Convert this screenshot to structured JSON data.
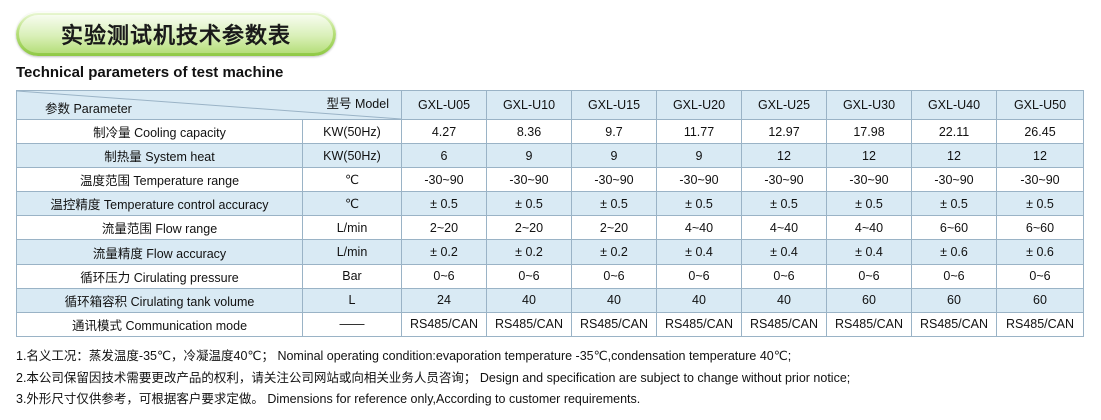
{
  "title": "实验测试机技术参数表",
  "subtitle": "Technical parameters of test machine",
  "table": {
    "corner_model_label": "型号 Model",
    "corner_param_label": "参数 Parameter",
    "models": [
      "GXL-U05",
      "GXL-U10",
      "GXL-U15",
      "GXL-U20",
      "GXL-U25",
      "GXL-U30",
      "GXL-U40",
      "GXL-U50"
    ],
    "rows": [
      {
        "param": "制冷量 Cooling capacity",
        "unit": "KW(50Hz)",
        "values": [
          "4.27",
          "8.36",
          "9.7",
          "11.77",
          "12.97",
          "17.98",
          "22.11",
          "26.45"
        ]
      },
      {
        "param": "制热量 System heat",
        "unit": "KW(50Hz)",
        "values": [
          "6",
          "9",
          "9",
          "9",
          "12",
          "12",
          "12",
          "12"
        ]
      },
      {
        "param": "温度范围 Temperature range",
        "unit": "℃",
        "values": [
          "-30~90",
          "-30~90",
          "-30~90",
          "-30~90",
          "-30~90",
          "-30~90",
          "-30~90",
          "-30~90"
        ]
      },
      {
        "param": "温控精度 Temperature control accuracy",
        "unit": "℃",
        "values": [
          "± 0.5",
          "± 0.5",
          "± 0.5",
          "± 0.5",
          "± 0.5",
          "± 0.5",
          "± 0.5",
          "± 0.5"
        ]
      },
      {
        "param": "流量范围 Flow range",
        "unit": "L/min",
        "values": [
          "2~20",
          "2~20",
          "2~20",
          "4~40",
          "4~40",
          "4~40",
          "6~60",
          "6~60"
        ]
      },
      {
        "param": "流量精度 Flow accuracy",
        "unit": "L/min",
        "values": [
          "± 0.2",
          "± 0.2",
          "± 0.2",
          "± 0.4",
          "± 0.4",
          "± 0.4",
          "± 0.6",
          "± 0.6"
        ]
      },
      {
        "param": "循环压力 Cirulating pressure",
        "unit": "Bar",
        "values": [
          "0~6",
          "0~6",
          "0~6",
          "0~6",
          "0~6",
          "0~6",
          "0~6",
          "0~6"
        ]
      },
      {
        "param": "循环箱容积 Cirulating tank volume",
        "unit": "L",
        "values": [
          "24",
          "40",
          "40",
          "40",
          "40",
          "60",
          "60",
          "60"
        ]
      },
      {
        "param": "通讯模式 Communication mode",
        "unit": "——",
        "values": [
          "RS485/CAN",
          "RS485/CAN",
          "RS485/CAN",
          "RS485/CAN",
          "RS485/CAN",
          "RS485/CAN",
          "RS485/CAN",
          "RS485/CAN"
        ]
      }
    ]
  },
  "notes": [
    "1.名义工况：蒸发温度-35℃，冷凝温度40℃；  Nominal operating condition:evaporation temperature -35℃,condensation temperature 40℃;",
    "2.本公司保留因技术需要更改产品的权利，请关注公司网站或向相关业务人员咨询；  Design and specification are subject to change without prior notice;",
    "3.外形尺寸仅供参考，可根据客户要求定做。  Dimensions for reference only,According to customer requirements."
  ]
}
